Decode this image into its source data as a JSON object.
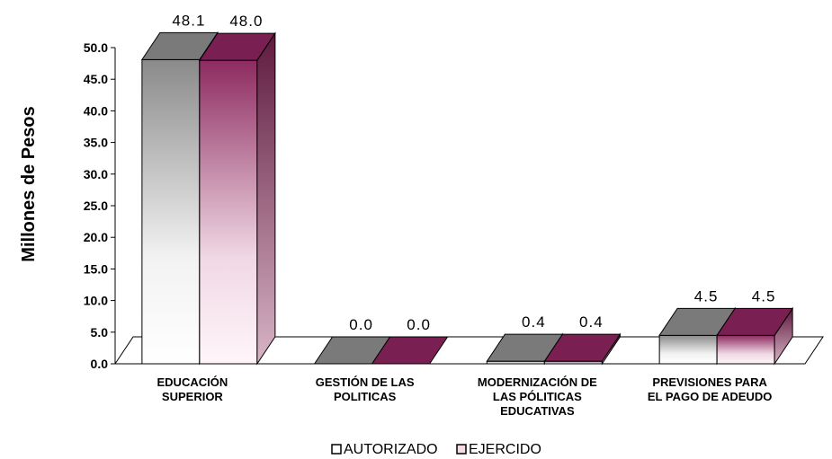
{
  "chart_data": {
    "type": "bar",
    "ylabel": "Millones de Pesos",
    "ylim": [
      0,
      50
    ],
    "yticks": [
      "0.0",
      "5.0",
      "10.0",
      "15.0",
      "20.0",
      "25.0",
      "30.0",
      "35.0",
      "40.0",
      "45.0",
      "50.0"
    ],
    "categories": [
      [
        "EDUCACIÓN",
        "SUPERIOR"
      ],
      [
        "GESTIÓN DE LAS",
        "POLITICAS"
      ],
      [
        "MODERNIZACIÓN DE",
        "LAS PÓLITICAS",
        "EDUCATIVAS"
      ],
      [
        "PREVISIONES PARA",
        "EL PAGO DE ADEUDO"
      ]
    ],
    "series": [
      {
        "name": "AUTORIZADO",
        "values": [
          48.1,
          0.0,
          0.4,
          4.5
        ],
        "labels": [
          "48.1",
          "0.0",
          "0.4",
          "4.5"
        ],
        "color": "#8c8c8c"
      },
      {
        "name": "EJERCIDO",
        "values": [
          48.0,
          0.0,
          0.4,
          4.5
        ],
        "labels": [
          "48.0",
          "0.0",
          "0.4",
          "4.5"
        ],
        "color": "#8b2a5e"
      }
    ],
    "legend_position": "bottom",
    "grid": false,
    "style": "3d"
  }
}
